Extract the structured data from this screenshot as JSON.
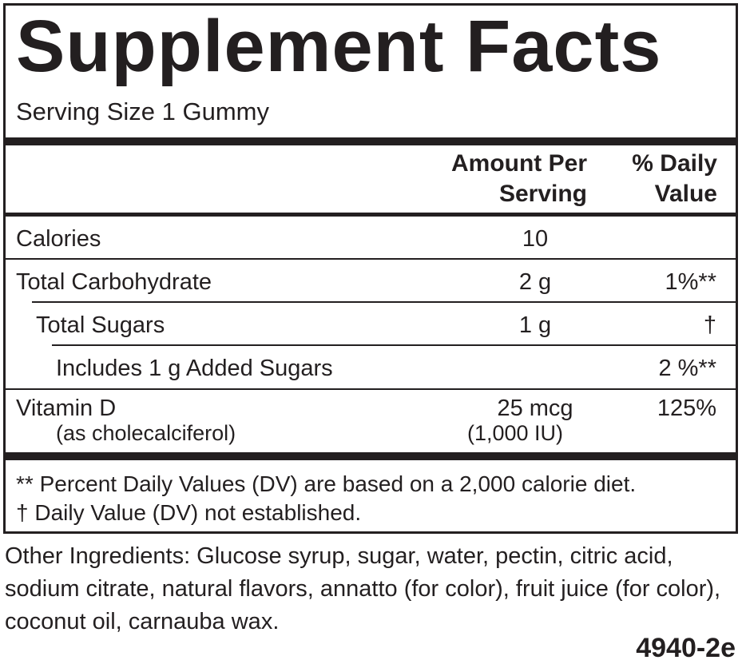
{
  "title": "Supplement Facts",
  "serving_size": "Serving Size 1 Gummy",
  "header": {
    "amount": "Amount Per Serving",
    "daily_value": "% Daily Value"
  },
  "rows": [
    {
      "name": "Calories",
      "amount": "10"
    },
    {
      "name": "Total Carbohydrate",
      "amount": "2 g",
      "daily_value": "1%**"
    },
    {
      "name": "Total Sugars",
      "amount": "1 g",
      "daily_value": "†"
    },
    {
      "name": "Includes 1 g Added Sugars",
      "daily_value": "2 %**"
    },
    {
      "name": "Vitamin D",
      "subname": "(as cholecalciferol)",
      "amount": "25 mcg",
      "subamount": "(1,000 IU)",
      "daily_value": "125%"
    }
  ],
  "footnotes": [
    "** Percent Daily Values (DV) are based on a 2,000 calorie diet.",
    "† Daily Value (DV) not established."
  ],
  "other_ingredients": "Other Ingredients: Glucose syrup, sugar, water, pectin, citric acid, sodium citrate, natural flavors, annatto (for color), fruit juice (for color), coconut oil, carnauba wax.",
  "code": "4940-2e"
}
